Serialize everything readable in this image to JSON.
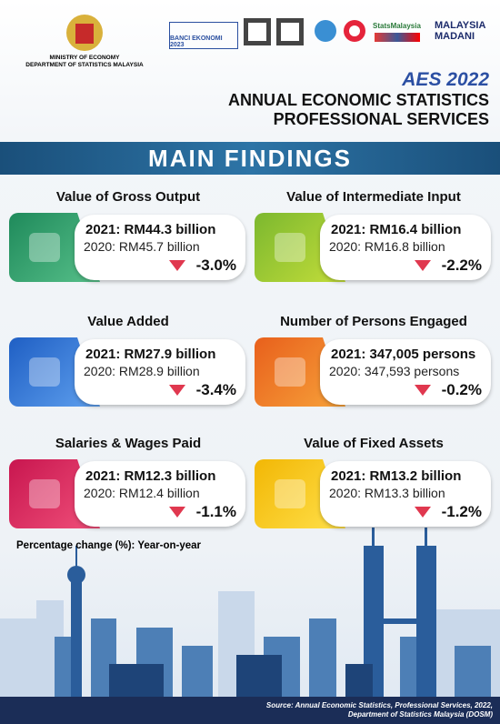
{
  "header": {
    "ministry": "MINISTRY OF ECONOMY",
    "department": "DEPARTMENT OF STATISTICS MALAYSIA",
    "census_logo": "BANCI EKONOMI 2023",
    "stats_logo": "StatsMalaysia",
    "madani_logo_1": "MALAYSIA",
    "madani_logo_2": "MADANI",
    "survey_logo": "AES 2022",
    "title_line_1": "ANNUAL ECONOMIC STATISTICS",
    "title_line_2": "PROFESSIONAL SERVICES"
  },
  "banner": "MAIN FINDINGS",
  "cards": [
    {
      "title": "Value of Gross Output",
      "current": "2021: RM44.3 billion",
      "previous": "2020: RM45.7 billion",
      "change": "-3.0%"
    },
    {
      "title": "Value of Intermediate Input",
      "current": "2021: RM16.4 billion",
      "previous": "2020: RM16.8 billion",
      "change": "-2.2%"
    },
    {
      "title": "Value Added",
      "current": "2021: RM27.9 billion",
      "previous": "2020: RM28.9 billion",
      "change": "-3.4%"
    },
    {
      "title": "Number of Persons Engaged",
      "current": "2021: 347,005 persons",
      "previous": "2020: 347,593 persons",
      "change": "-0.2%"
    },
    {
      "title": "Salaries & Wages Paid",
      "current": "2021: RM12.3 billion",
      "previous": "2020: RM12.4 billion",
      "change": "-1.1%"
    },
    {
      "title": "Value of Fixed Assets",
      "current": "2021: RM13.2 billion",
      "previous": "2020: RM13.3 billion",
      "change": "-1.2%"
    }
  ],
  "note": "Percentage change (%): Year-on-year",
  "source_line_1": "Source: Annual Economic Statistics, Professional Services, 2022,",
  "source_line_2": "Department of Statistics Malaysia (DOSM)"
}
